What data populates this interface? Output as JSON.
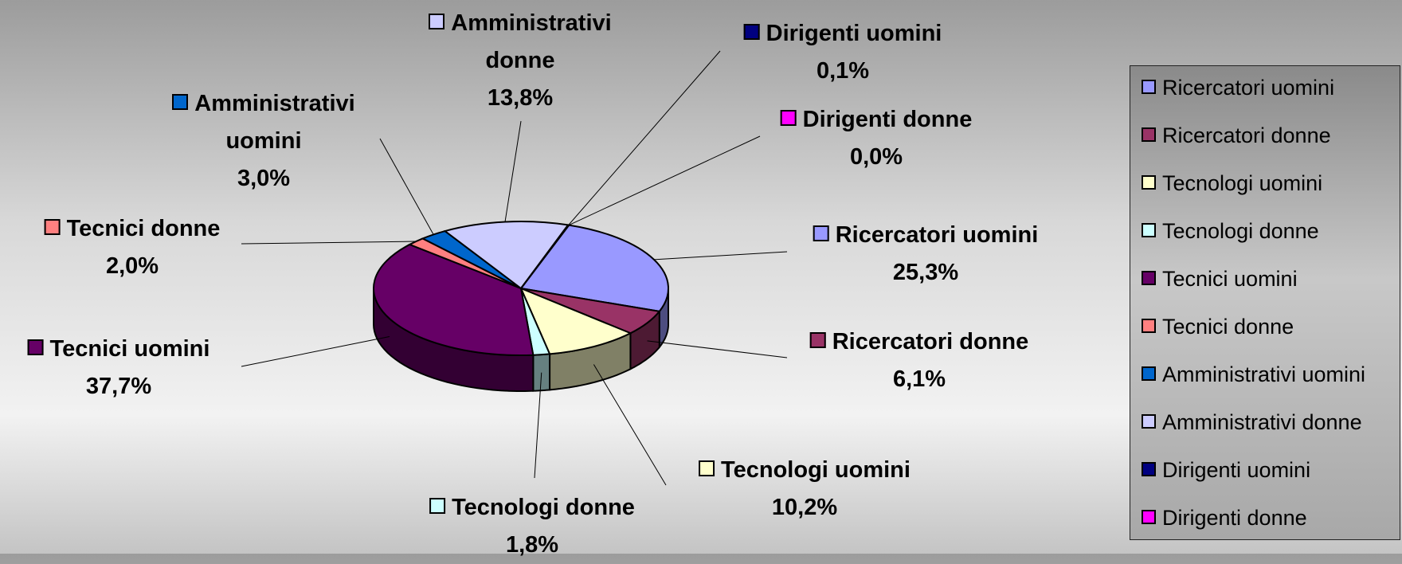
{
  "chart_data": {
    "type": "pie",
    "categories": [
      "Ricercatori uomini",
      "Ricercatori donne",
      "Tecnologi uomini",
      "Tecnologi donne",
      "Tecnici uomini",
      "Tecnici donne",
      "Amministrativi uomini",
      "Amministrativi donne",
      "Dirigenti uomini",
      "Dirigenti donne"
    ],
    "values": [
      25.3,
      6.1,
      10.2,
      1.8,
      37.7,
      2.0,
      3.0,
      13.8,
      0.1,
      0.0
    ],
    "value_labels": [
      "25,3%",
      "6,1%",
      "10,2%",
      "1,8%",
      "37,7%",
      "2,0%",
      "3,0%",
      "13,8%",
      "0,1%",
      "0,0%"
    ],
    "colors": [
      "#9999ff",
      "#993366",
      "#ffffcc",
      "#ccffff",
      "#660066",
      "#ff8080",
      "#0066cc",
      "#ccccff",
      "#000080",
      "#ff00ff"
    ],
    "legend": "right"
  }
}
